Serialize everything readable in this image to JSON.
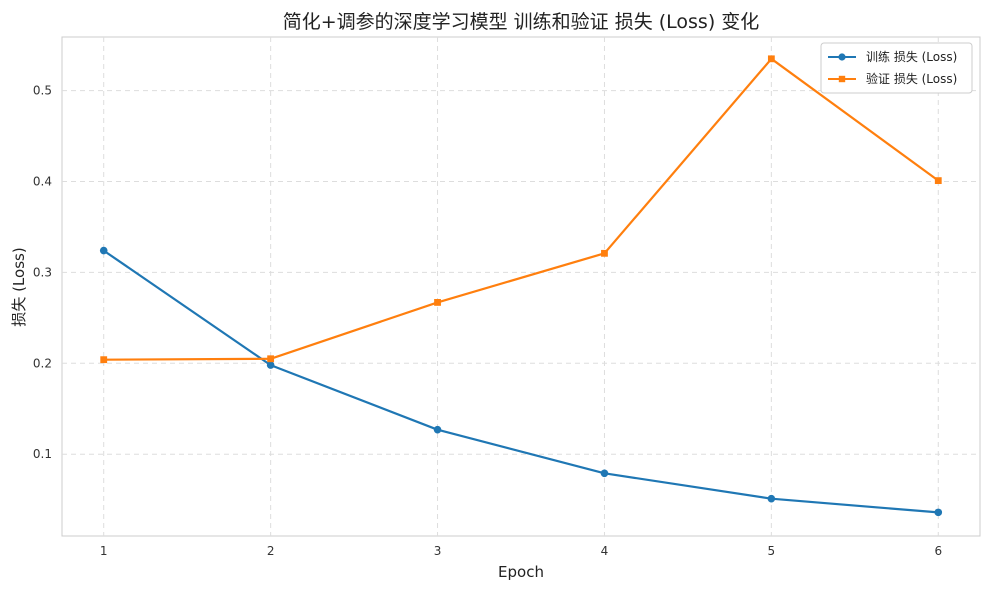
{
  "chart_data": {
    "type": "line",
    "title": "简化+调参的深度学习模型 训练和验证 损失 (Loss) 变化",
    "xlabel": "Epoch",
    "ylabel": "损失 (Loss)",
    "x": [
      1,
      2,
      3,
      4,
      5,
      6
    ],
    "xlim": [
      0.75,
      6.25
    ],
    "ylim": [
      0.01,
      0.559
    ],
    "yticks": [
      0.1,
      0.2,
      0.3,
      0.4,
      0.5
    ],
    "ytick_labels": [
      "0.1",
      "0.2",
      "0.3",
      "0.4",
      "0.5"
    ],
    "xticks": [
      1,
      2,
      3,
      4,
      5,
      6
    ],
    "xtick_labels": [
      "1",
      "2",
      "3",
      "4",
      "5",
      "6"
    ],
    "grid": true,
    "legend_position": "top-right",
    "series": [
      {
        "name": "训练 损失 (Loss)",
        "color": "#1f77b4",
        "marker": "circle",
        "values": [
          0.324,
          0.198,
          0.127,
          0.079,
          0.051,
          0.036
        ]
      },
      {
        "name": "验证 损失 (Loss)",
        "color": "#ff7f0e",
        "marker": "square",
        "values": [
          0.204,
          0.205,
          0.267,
          0.321,
          0.535,
          0.401
        ]
      }
    ]
  }
}
